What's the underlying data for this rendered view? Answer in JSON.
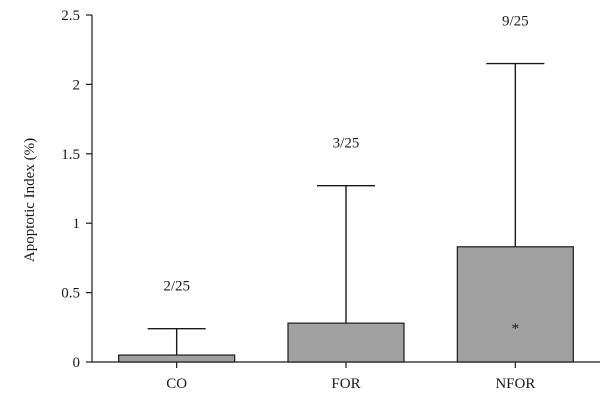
{
  "chart_data": {
    "type": "bar",
    "title": "",
    "xlabel": "",
    "ylabel": "Apoptotic Index (%)",
    "ylim": [
      0,
      2.5
    ],
    "yticks": [
      0,
      0.5,
      1,
      1.5,
      2,
      2.5
    ],
    "ytick_labels": [
      "0",
      "0.5",
      "1",
      "1.5",
      "2",
      "2.5"
    ],
    "categories": [
      "CO",
      "FOR",
      "NFOR"
    ],
    "values": [
      0.05,
      0.28,
      0.83
    ],
    "error_upper": [
      0.24,
      1.27,
      2.15
    ],
    "annotations": [
      "2/25",
      "3/25",
      "9/25"
    ],
    "significance": [
      "",
      "",
      "*"
    ],
    "bar_color": "#a0a0a0",
    "grid": false,
    "legend": "none"
  }
}
